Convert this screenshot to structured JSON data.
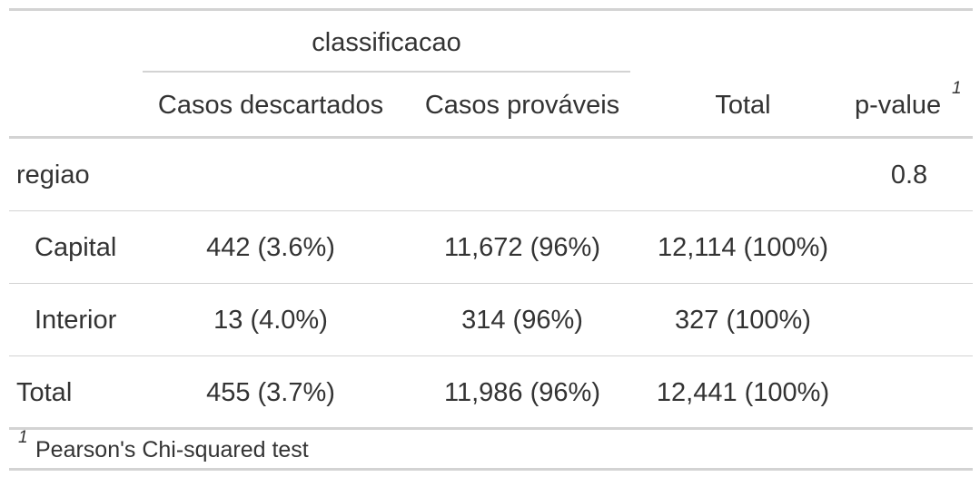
{
  "table": {
    "spanner": "classificacao",
    "headers": {
      "descartados": "Casos descartados",
      "provaveis": "Casos prováveis",
      "total": "Total",
      "pvalue": "p-value",
      "pvalue_marker": "1"
    },
    "rows": [
      {
        "label": "regiao",
        "descartados": "",
        "provaveis": "",
        "total": "",
        "pvalue": "0.8"
      },
      {
        "label": "Capital",
        "descartados": "442 (3.6%)",
        "provaveis": "11,672 (96%)",
        "total": "12,114 (100%)",
        "pvalue": ""
      },
      {
        "label": "Interior",
        "descartados": "13 (4.0%)",
        "provaveis": "314 (96%)",
        "total": "327 (100%)",
        "pvalue": ""
      },
      {
        "label": "Total",
        "descartados": "455 (3.7%)",
        "provaveis": "11,986 (96%)",
        "total": "12,441 (100%)",
        "pvalue": ""
      }
    ],
    "footnote": {
      "marker": "1",
      "text": "Pearson's Chi-squared test"
    }
  }
}
